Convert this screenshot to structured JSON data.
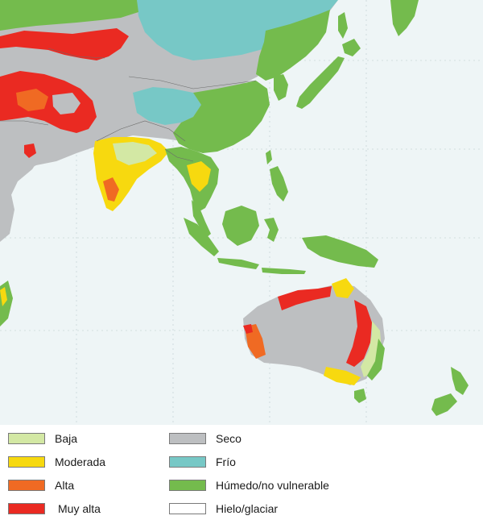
{
  "legend": {
    "items": [
      {
        "label": "Baja",
        "color": "#d3e8a4"
      },
      {
        "label": "Moderada",
        "color": "#f7d90f"
      },
      {
        "label": "Alta",
        "color": "#f06a23"
      },
      {
        "label": "Muy alta",
        "color": "#ea2a22"
      },
      {
        "label": "Seco",
        "color": "#bdbfc1"
      },
      {
        "label": "Frío",
        "color": "#77c8c6"
      },
      {
        "label": "Húmedo/no vulnerable",
        "color": "#74bb4d"
      },
      {
        "label": "Hielo/glaciar",
        "color": "#ffffff"
      }
    ]
  },
  "map": {
    "ocean_color": "#eef5f6",
    "border_color": "#6b6b6b",
    "graticule_color": "#c8d6d8"
  }
}
